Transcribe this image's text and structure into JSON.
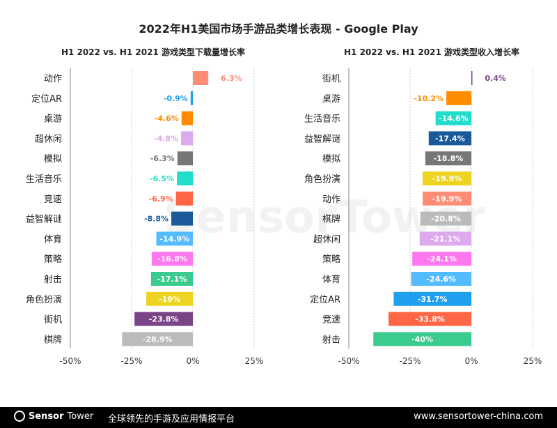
{
  "title": "2022年H1美国市场手游品类增长表现 - Google Play",
  "watermark": "SensorTower",
  "colors": {
    "动作": "#FF8C75",
    "定位AR": "#1FA0EE",
    "桌游": "#FF8C00",
    "超休闲": "#DDAAEE",
    "模拟": "#777777",
    "生活音乐": "#22DDCC",
    "竞速": "#FF6644",
    "益智解谜": "#1A5A9A",
    "体育": "#55BBFF",
    "策略": "#FF77EE",
    "射击": "#3CCB8F",
    "角色扮演": "#EED422",
    "街机": "#7A4488",
    "棋牌": "#BBBBBB"
  },
  "chart_data": [
    {
      "type": "bar",
      "orientation": "horizontal",
      "title": "H1 2022 vs. H1 2021 游戏类型下载量增长率",
      "xlim": [
        -50,
        25
      ],
      "xticks": [
        "-50%",
        "-25%",
        "0%",
        "25%"
      ],
      "xtick_values": [
        -50,
        -25,
        0,
        25
      ],
      "categories": [
        "动作",
        "定位AR",
        "桌游",
        "超休闲",
        "模拟",
        "生活音乐",
        "竞速",
        "益智解谜",
        "体育",
        "策略",
        "射击",
        "角色扮演",
        "街机",
        "棋牌"
      ],
      "values": [
        6.3,
        -0.9,
        -4.6,
        -4.8,
        -6.3,
        -6.5,
        -6.9,
        -8.8,
        -14.9,
        -16.8,
        -17.1,
        -19,
        -23.8,
        -28.9
      ],
      "labels": [
        "6.3%",
        "-0.9%",
        "-4.6%",
        "-4.8%",
        "-6.3%",
        "-6.5%",
        "-6.9%",
        "-8.8%",
        "-14.9%",
        "-16.8%",
        "-17.1%",
        "-19%",
        "-23.8%",
        "-28.9%"
      ]
    },
    {
      "type": "bar",
      "orientation": "horizontal",
      "title": "H1 2022 vs. H1 2021 游戏类型收入增长率",
      "xlim": [
        -50,
        25
      ],
      "xticks": [
        "-50%",
        "-25%",
        "0%",
        "25%"
      ],
      "xtick_values": [
        -50,
        -25,
        0,
        25
      ],
      "categories": [
        "街机",
        "桌游",
        "生活音乐",
        "益智解谜",
        "模拟",
        "角色扮演",
        "动作",
        "棋牌",
        "超休闲",
        "策略",
        "体育",
        "定位AR",
        "竞速",
        "射击"
      ],
      "values": [
        0.4,
        -10.2,
        -14.6,
        -17.4,
        -18.8,
        -19.9,
        -19.9,
        -20.8,
        -21.1,
        -24.1,
        -24.6,
        -31.7,
        -33.8,
        -40
      ],
      "labels": [
        "0.4%",
        "-10.2%",
        "-14.6%",
        "-17.4%",
        "-18.8%",
        "-19.9%",
        "-19.9%",
        "-20.8%",
        "-21.1%",
        "-24.1%",
        "-24.6%",
        "-31.7%",
        "-33.8%",
        "-40%"
      ]
    }
  ],
  "footer": {
    "brand_bold": "Sensor",
    "brand_light": "Tower",
    "slogan": "全球领先的手游及应用情报平台",
    "url": "www.sensortower-china.com"
  }
}
